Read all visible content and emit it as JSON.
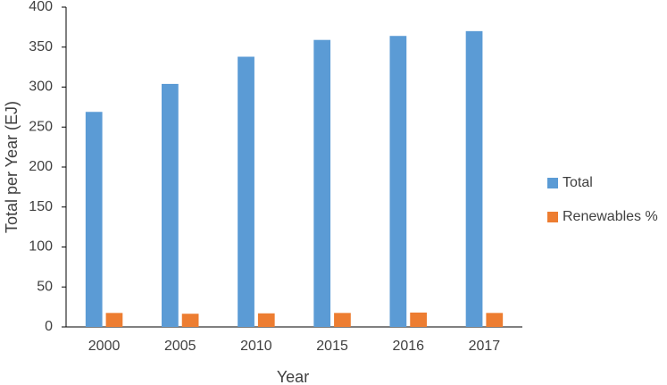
{
  "chart_data": {
    "type": "bar",
    "x_label": "Year",
    "y_label": "Total per Year (EJ)",
    "categories": [
      "2000",
      "2005",
      "2010",
      "2015",
      "2016",
      "2017"
    ],
    "series": [
      {
        "name": "Total",
        "color": "#5b9bd5",
        "values": [
          269,
          304,
          338,
          359,
          364,
          370
        ]
      },
      {
        "name": "Renewables %",
        "color": "#ed7d31",
        "values": [
          17.5,
          16.5,
          17,
          17.5,
          18,
          17.5
        ]
      }
    ],
    "ylim": [
      0,
      400
    ],
    "yticks": [
      0,
      50,
      100,
      150,
      200,
      250,
      300,
      350,
      400
    ],
    "grid": false,
    "legend": "right"
  }
}
